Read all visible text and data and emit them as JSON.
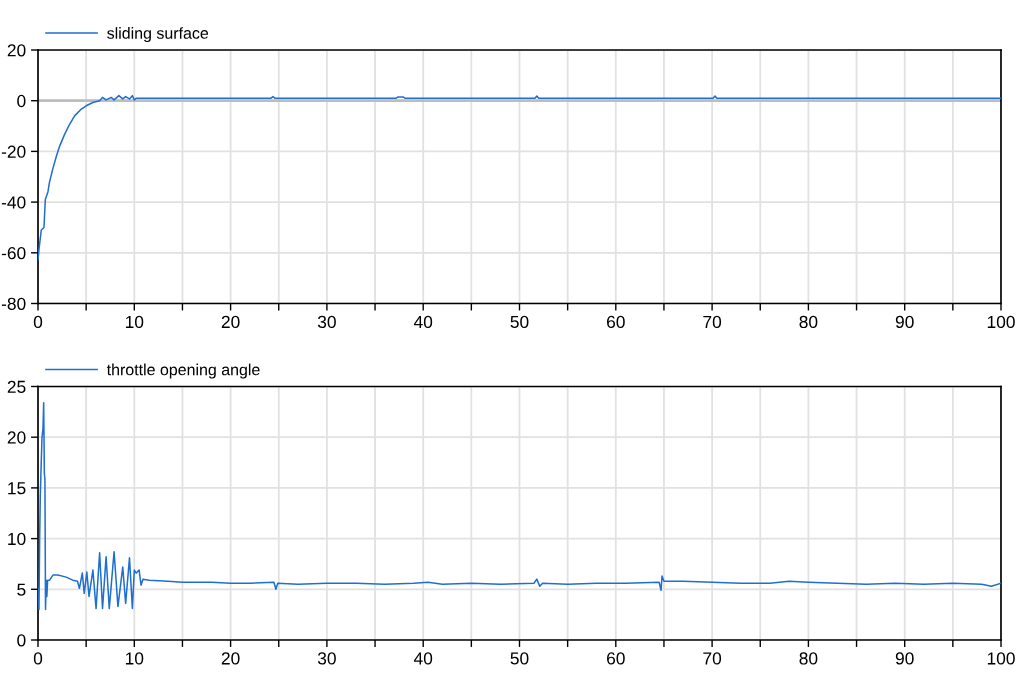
{
  "chart_data": [
    {
      "type": "line",
      "legend": "top left",
      "grid": true,
      "series": [
        {
          "name": "sliding surface",
          "color": "#1f6fd2",
          "x": [
            0,
            0.1,
            0.34,
            0.62,
            0.76,
            1.03,
            1.2,
            1.55,
            1.9,
            2.24,
            2.76,
            3.28,
            3.8,
            4.5,
            5,
            5.7,
            6.4,
            6.7,
            7.07,
            7.6,
            7.9,
            8.4,
            8.8,
            9.1,
            9.5,
            9.8,
            10,
            10.2,
            15,
            24.2,
            24.4,
            24.6,
            30,
            37.2,
            37.4,
            37.9,
            38.1,
            45,
            51.6,
            51.8,
            52.0,
            60,
            70.1,
            70.3,
            70.5,
            80,
            90,
            100
          ],
          "values": [
            -62.7,
            -58.7,
            -51,
            -50,
            -39,
            -36,
            -32,
            -26.7,
            -22,
            -18,
            -13.3,
            -9.3,
            -6,
            -3.3,
            -2,
            -0.7,
            0,
            1.3,
            0.3,
            1.3,
            0.3,
            2,
            0.7,
            1.6,
            0.7,
            2,
            0.3,
            1,
            1,
            1,
            1.6,
            1,
            1,
            1,
            1.5,
            1.5,
            1,
            1,
            1,
            1.8,
            1,
            1,
            1,
            1.8,
            1,
            1,
            1,
            1
          ]
        }
      ],
      "xlim": [
        0,
        100
      ],
      "xticks": [
        0,
        {
          "value": 5,
          "label": null
        },
        10,
        {
          "value": 15,
          "label": null
        },
        20,
        {
          "value": 25,
          "label": null
        },
        30,
        {
          "value": 35,
          "label": null
        },
        40,
        {
          "value": 45,
          "label": null
        },
        50,
        {
          "value": 55,
          "label": null
        },
        60,
        {
          "value": 65,
          "label": null
        },
        70,
        {
          "value": 75,
          "label": null
        },
        80,
        {
          "value": 85,
          "label": null
        },
        90,
        {
          "value": 95,
          "label": null
        },
        100
      ],
      "ylim": [
        -80,
        20
      ],
      "yticks": [
        -80,
        -60,
        -40,
        -20,
        0,
        20
      ],
      "ref_lines": [
        {
          "axis": "y",
          "value": 0,
          "color": "#bdbdbd"
        }
      ]
    },
    {
      "type": "line",
      "legend": "top left",
      "grid": true,
      "series": [
        {
          "name": "throttle opening angle",
          "color": "#1f6fd2",
          "x": [
            0,
            0.1,
            0.17,
            0.24,
            0.41,
            0.52,
            0.59,
            0.66,
            0.72,
            0.78,
            0.85,
            0.92,
            1.0,
            1.2,
            1.55,
            2.07,
            2.93,
            3.6,
            4.1,
            4.3,
            4.6,
            4.8,
            5.07,
            5.3,
            5.7,
            6.03,
            6.4,
            6.7,
            7.07,
            7.4,
            7.9,
            8.3,
            8.8,
            9.1,
            9.5,
            9.8,
            10.0,
            10.2,
            10.5,
            10.7,
            10.9,
            11.55,
            13.5,
            15,
            18,
            20,
            22,
            24.5,
            24.7,
            24.9,
            27,
            30,
            33,
            36,
            39,
            40.5,
            42,
            45,
            48,
            51.5,
            51.8,
            52.1,
            52.4,
            55,
            58,
            61,
            64.5,
            64.7,
            64.8,
            65,
            67,
            70,
            73,
            76,
            78,
            80,
            83,
            86,
            89,
            92,
            95,
            98,
            99,
            100
          ],
          "values": [
            5.1,
            3.0,
            9.9,
            14.3,
            19.9,
            20.9,
            23.4,
            16.4,
            15.8,
            3.0,
            5.9,
            4.3,
            5.9,
            5.9,
            6.4,
            6.4,
            6.2,
            5.9,
            5.8,
            5.1,
            6.6,
            4.6,
            6.7,
            4.3,
            6.9,
            3.1,
            8.6,
            3.1,
            8.2,
            3.1,
            8.7,
            3.3,
            7.2,
            3.6,
            8.1,
            3.1,
            6.9,
            6.6,
            6.9,
            5.4,
            6.0,
            5.9,
            5.8,
            5.7,
            5.7,
            5.6,
            5.6,
            5.7,
            5.0,
            5.6,
            5.5,
            5.6,
            5.6,
            5.5,
            5.6,
            5.7,
            5.5,
            5.6,
            5.5,
            5.6,
            6.0,
            5.3,
            5.6,
            5.5,
            5.6,
            5.6,
            5.7,
            4.9,
            6.3,
            5.8,
            5.8,
            5.7,
            5.6,
            5.6,
            5.8,
            5.7,
            5.6,
            5.5,
            5.6,
            5.5,
            5.6,
            5.5,
            5.3,
            5.6
          ]
        }
      ],
      "xlim": [
        0,
        100
      ],
      "xticks": [
        0,
        {
          "value": 5,
          "label": null
        },
        10,
        {
          "value": 15,
          "label": null
        },
        20,
        {
          "value": 25,
          "label": null
        },
        30,
        {
          "value": 35,
          "label": null
        },
        40,
        {
          "value": 45,
          "label": null
        },
        50,
        {
          "value": 55,
          "label": null
        },
        60,
        {
          "value": 65,
          "label": null
        },
        70,
        {
          "value": 75,
          "label": null
        },
        80,
        {
          "value": 85,
          "label": null
        },
        90,
        {
          "value": 95,
          "label": null
        },
        100
      ],
      "ylim": [
        0,
        25
      ],
      "yticks": [
        0,
        5,
        10,
        15,
        20,
        25
      ]
    }
  ]
}
